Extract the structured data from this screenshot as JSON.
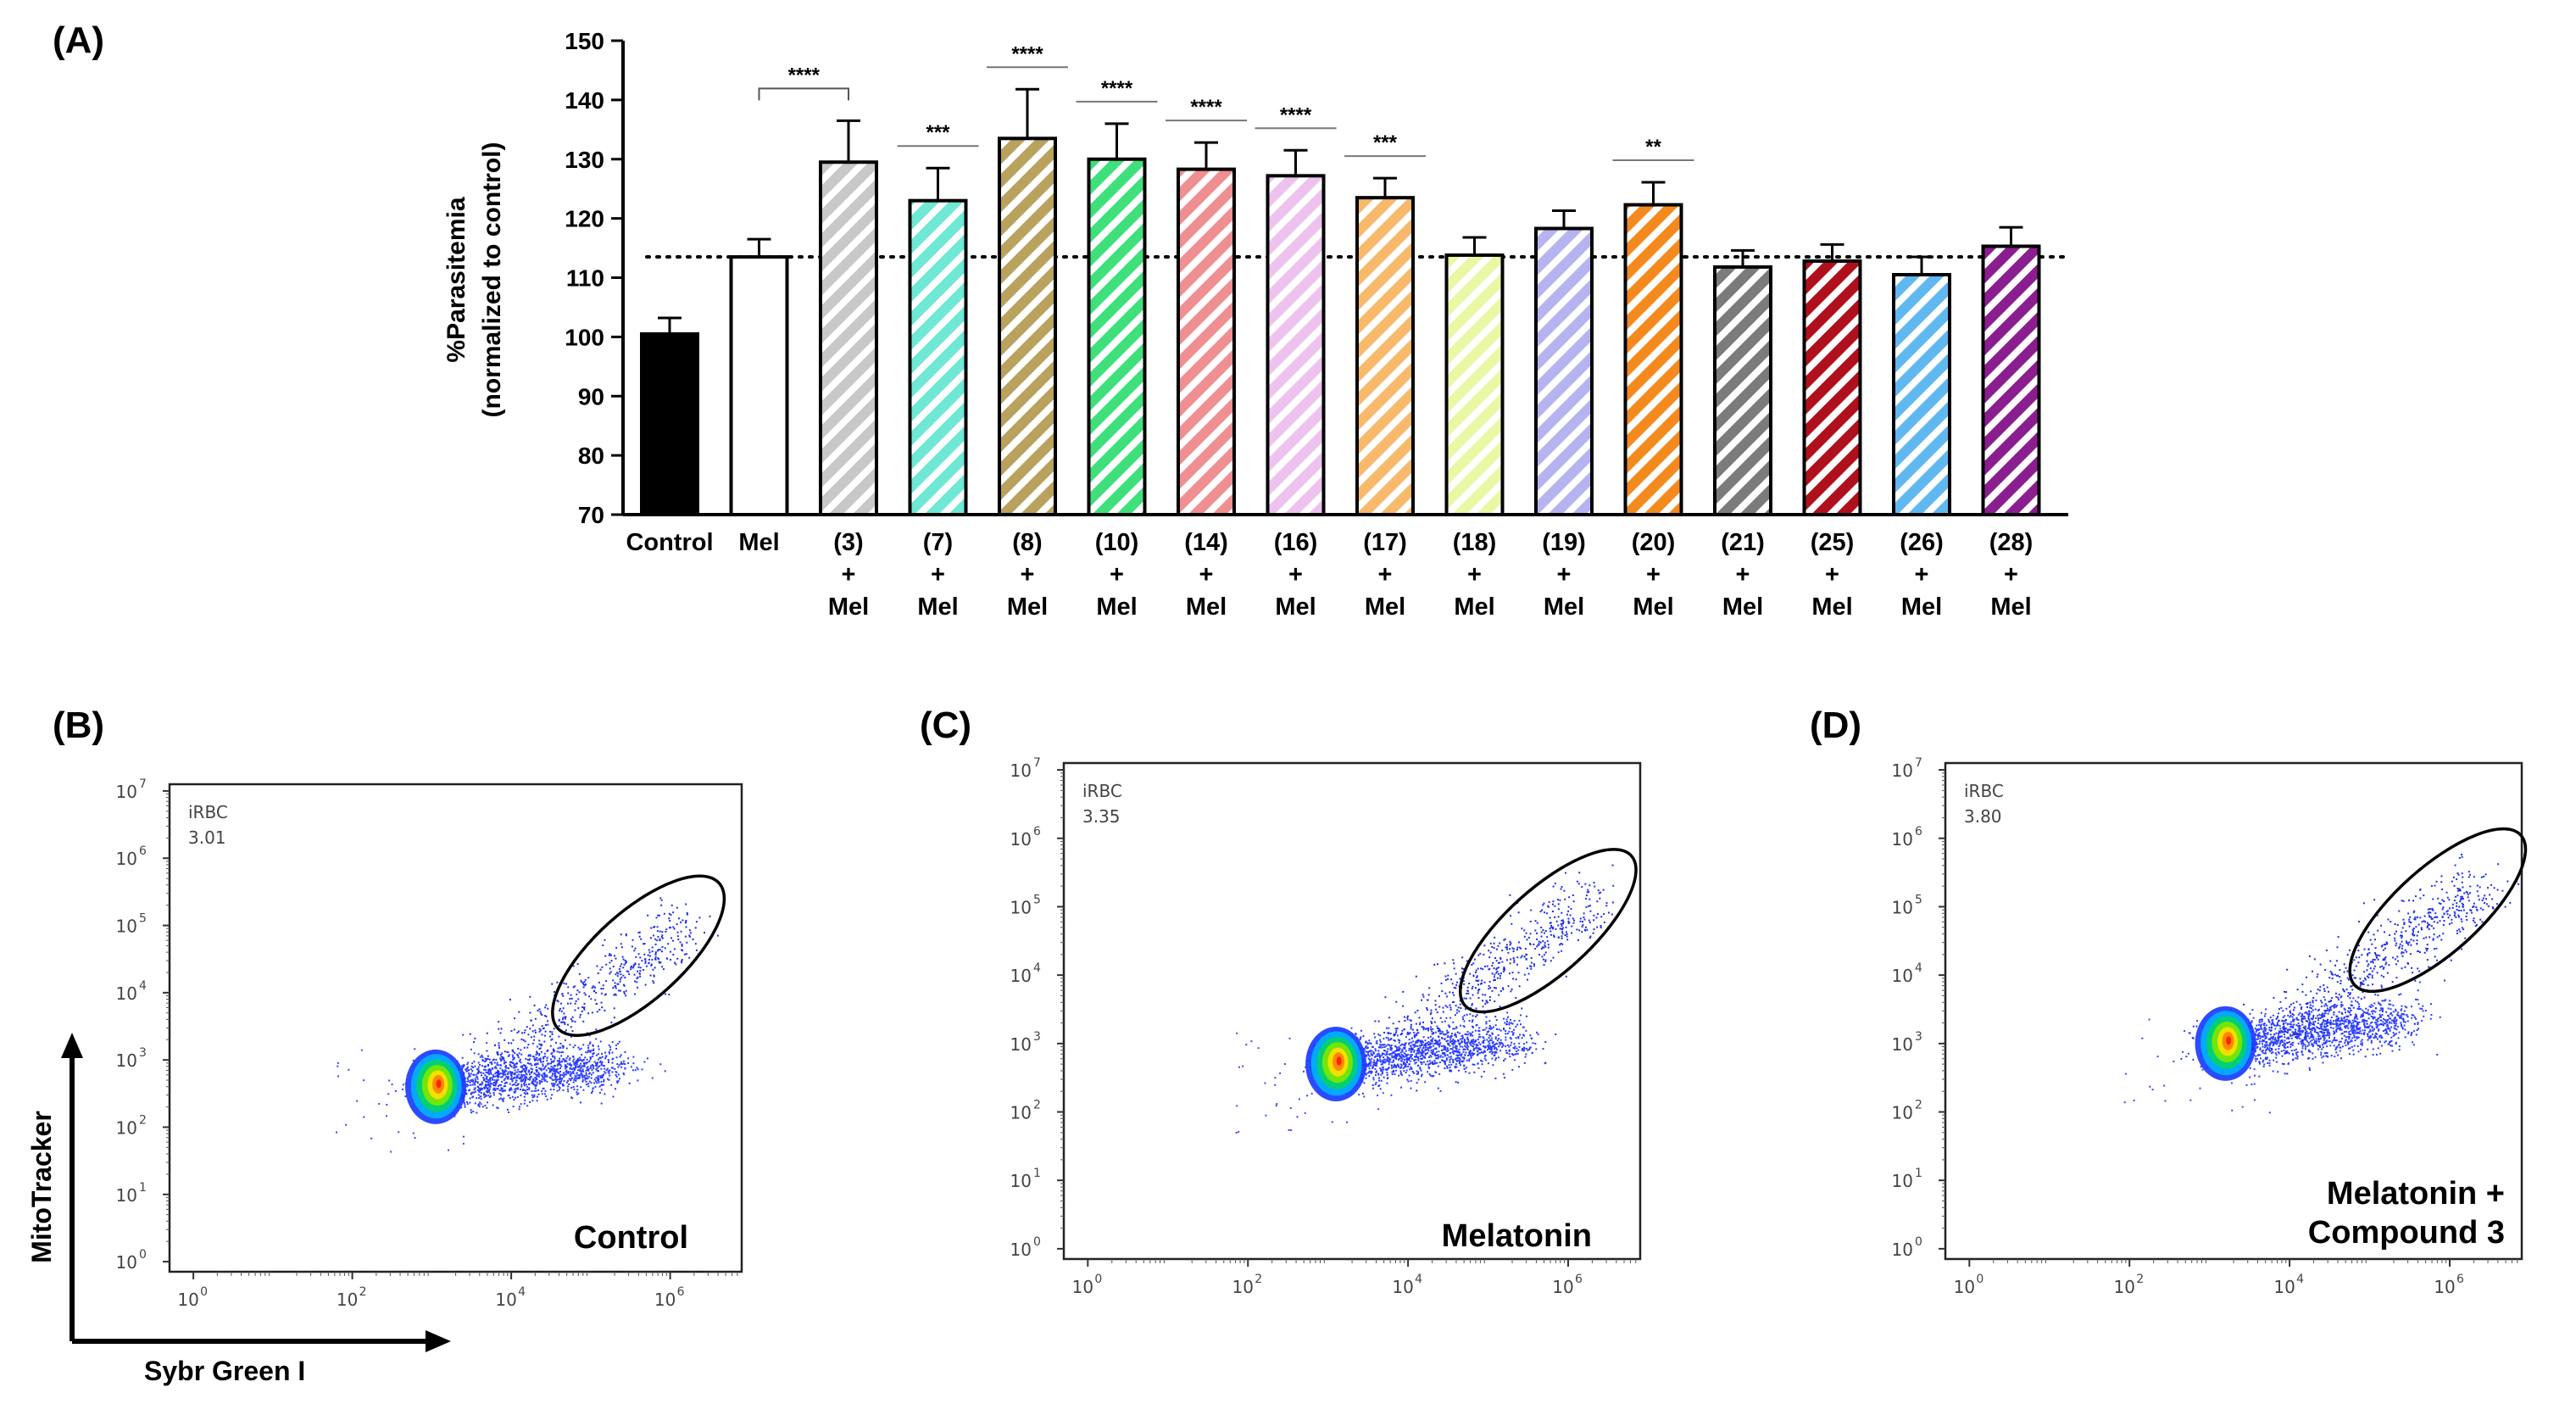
{
  "panels": {
    "A": "(A)",
    "B": "(B)",
    "C": "(C)",
    "D": "(D)"
  },
  "chart_data": [
    {
      "type": "bar",
      "panel": "A",
      "ylabel_line1": "%Parasitemia",
      "ylabel_line2": "(normalized to control)",
      "ylim": [
        70,
        150
      ],
      "yticks": [
        "70",
        "80",
        "90",
        "100",
        "110",
        "120",
        "130",
        "140",
        "150"
      ],
      "reference_line": 113.5,
      "categories_line1": [
        "Control",
        "Mel",
        "(3)",
        "(7)",
        "(8)",
        "(10)",
        "(14)",
        "(16)",
        "(17)",
        "(18)",
        "(19)",
        "(20)",
        "(21)",
        "(25)",
        "(26)",
        "(28)"
      ],
      "categories_line2": [
        "",
        "",
        "+",
        "+",
        "+",
        "+",
        "+",
        "+",
        "+",
        "+",
        "+",
        "+",
        "+",
        "+",
        "+",
        "+"
      ],
      "categories_line3": [
        "",
        "",
        "Mel",
        "Mel",
        "Mel",
        "Mel",
        "Mel",
        "Mel",
        "Mel",
        "Mel",
        "Mel",
        "Mel",
        "Mel",
        "Mel",
        "Mel",
        "Mel"
      ],
      "values": [
        100.5,
        113.5,
        129.5,
        123,
        133.5,
        130,
        128.3,
        127.2,
        123.5,
        113.8,
        118.3,
        122.3,
        111.8,
        112.8,
        110.5,
        115.3
      ],
      "errors": [
        2.7,
        3.0,
        7.0,
        5.5,
        8.3,
        6.0,
        4.5,
        4.3,
        3.3,
        3.0,
        3.0,
        3.8,
        2.8,
        2.8,
        3.0,
        3.2
      ],
      "colors": [
        "#000000",
        "#ffffff",
        "#c8c8c8",
        "#6fe8d4",
        "#b8a25e",
        "#3fe07c",
        "#f08f92",
        "#eec2ee",
        "#f7b96b",
        "#e8f8a4",
        "#b6b3f1",
        "#f48a1e",
        "#7b7b7b",
        "#b0101c",
        "#61b8f0",
        "#8a1e8f"
      ],
      "hatched": [
        false,
        false,
        true,
        true,
        true,
        true,
        true,
        true,
        true,
        true,
        true,
        true,
        true,
        true,
        true,
        true
      ],
      "significance": [
        "",
        "",
        "****",
        "***",
        "****",
        "****",
        "****",
        "****",
        "***",
        "",
        "",
        "**",
        "",
        "",
        "",
        ""
      ]
    },
    {
      "type": "scatter",
      "panel": "B",
      "gate_label": "iRBC",
      "gate_value": "3.01",
      "annotation_line1": "Control",
      "annotation_line2": "",
      "xticks": [
        "10",
        "10",
        "10",
        "10"
      ],
      "xtick_exp": [
        "0",
        "2",
        "4",
        "6"
      ],
      "yticks": [
        "10",
        "10",
        "10",
        "10",
        "10",
        "10",
        "10",
        "10"
      ],
      "ytick_exp": [
        "0",
        "1",
        "2",
        "3",
        "4",
        "5",
        "6",
        "7"
      ],
      "xlabel": "Sybr Green I",
      "ylabel": "MitoTracker"
    },
    {
      "type": "scatter",
      "panel": "C",
      "gate_label": "iRBC",
      "gate_value": "3.35",
      "annotation_line1": "Melatonin",
      "annotation_line2": "",
      "xticks": [
        "10",
        "10",
        "10",
        "10"
      ],
      "xtick_exp": [
        "0",
        "2",
        "4",
        "6"
      ],
      "yticks": [
        "10",
        "10",
        "10",
        "10",
        "10",
        "10",
        "10",
        "10"
      ],
      "ytick_exp": [
        "0",
        "1",
        "2",
        "3",
        "4",
        "5",
        "6",
        "7"
      ]
    },
    {
      "type": "scatter",
      "panel": "D",
      "gate_label": "iRBC",
      "gate_value": "3.80",
      "annotation_line1": "Melatonin +",
      "annotation_line2": "Compound 3",
      "xticks": [
        "10",
        "10",
        "10",
        "10"
      ],
      "xtick_exp": [
        "0",
        "2",
        "4",
        "6"
      ],
      "yticks": [
        "10",
        "10",
        "10",
        "10",
        "10",
        "10",
        "10",
        "10"
      ],
      "ytick_exp": [
        "0",
        "1",
        "2",
        "3",
        "4",
        "5",
        "6",
        "7"
      ]
    }
  ]
}
